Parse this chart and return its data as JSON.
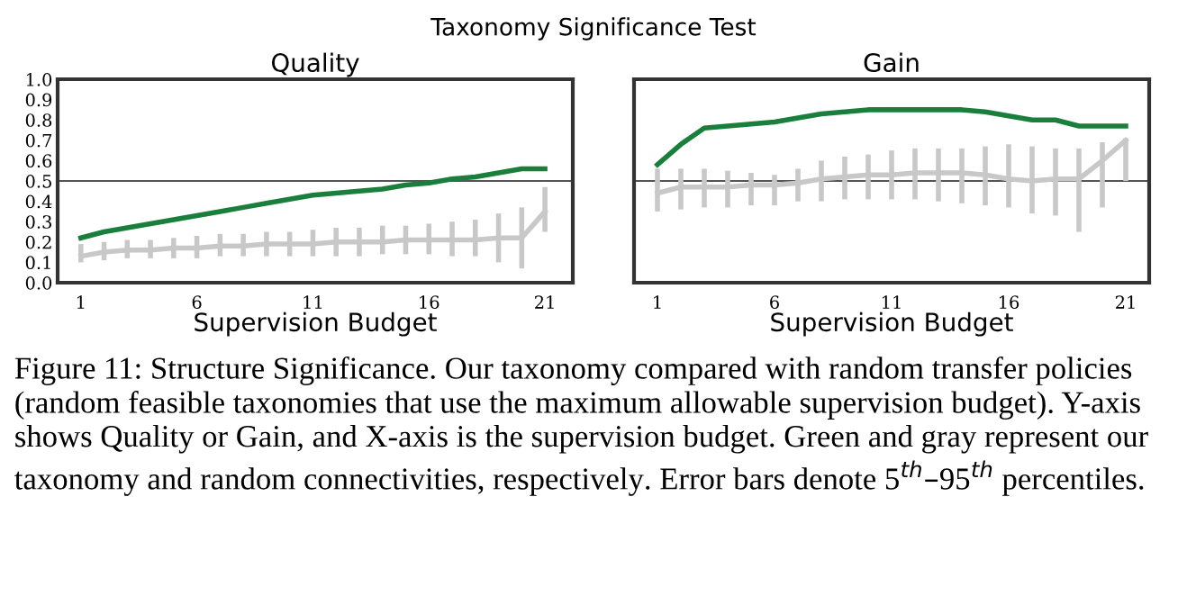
{
  "chart_data": [
    {
      "type": "line",
      "title": "Quality",
      "xlabel": "Supervision Budget",
      "annotations": [
        "Taxonomy Significance Test",
        "Figure 11: Structure Significance. Our taxonomy compared with random transfer policies (random feasible taxonomies that use the maximum allowable supervision budget). Y-axis shows Quality or Gain, and X-axis is the supervision budget. Green and gray represent our taxonomy and random connectivities, respectively. Error bars denote 5$^{th}$–95$^{th}$ percentiles."
      ],
      "x": [
        1,
        2,
        3,
        4,
        5,
        6,
        7,
        8,
        9,
        10,
        11,
        12,
        13,
        14,
        15,
        16,
        17,
        18,
        19,
        20,
        21
      ],
      "series": [
        {
          "color": "#1a7f3c",
          "values": [
            0.22,
            0.25,
            0.27,
            0.29,
            0.31,
            0.33,
            0.35,
            0.37,
            0.39,
            0.41,
            0.43,
            0.44,
            0.45,
            0.46,
            0.48,
            0.49,
            0.51,
            0.52,
            0.54,
            0.56,
            0.56
          ]
        },
        {
          "color": "#c8c8c8",
          "values": [
            0.13,
            0.15,
            0.16,
            0.16,
            0.17,
            0.17,
            0.18,
            0.18,
            0.19,
            0.19,
            0.19,
            0.2,
            0.2,
            0.2,
            0.21,
            0.21,
            0.21,
            0.21,
            0.22,
            0.22,
            0.35
          ],
          "errors": [
            [
              0.1,
              0.19
            ],
            [
              0.11,
              0.2
            ],
            [
              0.12,
              0.21
            ],
            [
              0.12,
              0.21
            ],
            [
              0.12,
              0.22
            ],
            [
              0.12,
              0.23
            ],
            [
              0.13,
              0.24
            ],
            [
              0.13,
              0.24
            ],
            [
              0.13,
              0.25
            ],
            [
              0.13,
              0.25
            ],
            [
              0.13,
              0.26
            ],
            [
              0.13,
              0.27
            ],
            [
              0.13,
              0.27
            ],
            [
              0.14,
              0.28
            ],
            [
              0.14,
              0.28
            ],
            [
              0.14,
              0.29
            ],
            [
              0.13,
              0.3
            ],
            [
              0.13,
              0.31
            ],
            [
              0.1,
              0.34
            ],
            [
              0.07,
              0.37
            ],
            [
              0.25,
              0.47
            ]
          ]
        }
      ],
      "ref_lines": [
        {
          "axis": "y",
          "value": 0.5,
          "color": "#555555"
        }
      ],
      "xlim": [
        0,
        22.2
      ],
      "ylim": [
        0,
        1
      ],
      "xticks": [
        1,
        6,
        11,
        16,
        21
      ],
      "yticks": [
        {
          "value": 0,
          "label": "0.0"
        },
        {
          "value": 0.1,
          "label": "0.1"
        },
        {
          "value": 0.2,
          "label": "0.2"
        },
        {
          "value": 0.3,
          "label": "0.3"
        },
        {
          "value": 0.4,
          "label": "0.4"
        },
        {
          "value": 0.5,
          "label": "0.5"
        },
        {
          "value": 0.6,
          "label": "0.6"
        },
        {
          "value": 0.7,
          "label": "0.7"
        },
        {
          "value": 0.8,
          "label": "0.8"
        },
        {
          "value": 0.9,
          "label": "0.9"
        },
        {
          "value": 1,
          "label": "1.0"
        }
      ],
      "grid": false,
      "legend": false
    },
    {
      "type": "line",
      "title": "Gain",
      "xlabel": "Supervision Budget",
      "x": [
        1,
        2,
        3,
        4,
        5,
        6,
        7,
        8,
        9,
        10,
        11,
        12,
        13,
        14,
        15,
        16,
        17,
        18,
        19,
        20,
        21
      ],
      "series": [
        {
          "color": "#1a7f3c",
          "values": [
            0.58,
            0.68,
            0.76,
            0.77,
            0.78,
            0.79,
            0.81,
            0.83,
            0.84,
            0.85,
            0.85,
            0.85,
            0.85,
            0.85,
            0.84,
            0.82,
            0.8,
            0.8,
            0.77,
            0.77,
            0.77
          ]
        },
        {
          "color": "#c8c8c8",
          "values": [
            0.44,
            0.47,
            0.47,
            0.47,
            0.48,
            0.48,
            0.49,
            0.51,
            0.52,
            0.53,
            0.53,
            0.54,
            0.54,
            0.54,
            0.53,
            0.51,
            0.5,
            0.51,
            0.51,
            0.6,
            0.7
          ],
          "errors": [
            [
              0.35,
              0.56
            ],
            [
              0.36,
              0.56
            ],
            [
              0.37,
              0.56
            ],
            [
              0.37,
              0.55
            ],
            [
              0.38,
              0.54
            ],
            [
              0.38,
              0.53
            ],
            [
              0.4,
              0.56
            ],
            [
              0.4,
              0.6
            ],
            [
              0.41,
              0.62
            ],
            [
              0.41,
              0.63
            ],
            [
              0.41,
              0.65
            ],
            [
              0.41,
              0.66
            ],
            [
              0.4,
              0.66
            ],
            [
              0.39,
              0.66
            ],
            [
              0.38,
              0.67
            ],
            [
              0.37,
              0.68
            ],
            [
              0.34,
              0.67
            ],
            [
              0.33,
              0.66
            ],
            [
              0.25,
              0.66
            ],
            [
              0.37,
              0.69
            ],
            [
              0.5,
              0.71
            ]
          ]
        }
      ],
      "ref_lines": [
        {
          "axis": "y",
          "value": 0.5,
          "color": "#555555"
        }
      ],
      "xlim": [
        0,
        22
      ],
      "ylim": [
        0,
        1
      ],
      "xticks": [
        1,
        6,
        11,
        16,
        21
      ],
      "tick_labels": "x",
      "grid": false,
      "legend": false
    }
  ]
}
